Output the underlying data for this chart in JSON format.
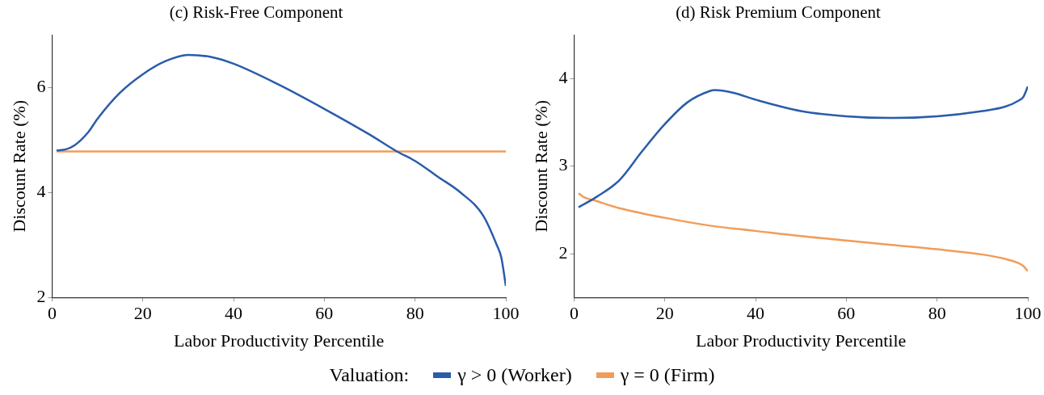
{
  "chart_data": [
    {
      "type": "line",
      "title": "(c) Risk-Free Component",
      "xlabel": "Labor Productivity Percentile",
      "ylabel": "Discount Rate (%)",
      "xlim": [
        0,
        100
      ],
      "xticks": [
        0,
        20,
        40,
        60,
        80,
        100
      ],
      "ylim": [
        2,
        7
      ],
      "yticks": [
        2,
        4,
        6
      ],
      "grid": false,
      "legend": "bottom",
      "legend_title": "Valuation:",
      "marker": "none",
      "series": [
        {
          "name": "γ > 0 (Worker)",
          "color": "#2a5caa",
          "x": [
            1,
            3,
            5,
            8,
            10,
            15,
            20,
            25,
            30,
            35,
            40,
            50,
            60,
            70,
            76,
            80,
            85,
            90,
            95,
            98,
            99,
            100
          ],
          "values": [
            4.8,
            4.82,
            4.9,
            5.15,
            5.4,
            5.9,
            6.25,
            6.5,
            6.62,
            6.58,
            6.45,
            6.05,
            5.59,
            5.1,
            4.78,
            4.6,
            4.3,
            4.0,
            3.56,
            3.0,
            2.76,
            2.22
          ]
        },
        {
          "name": "γ = 0 (Firm)",
          "color": "#f19c59",
          "x": [
            1,
            100
          ],
          "values": [
            4.78,
            4.78
          ]
        }
      ]
    },
    {
      "type": "line",
      "title": "(d) Risk Premium Component",
      "xlabel": "Labor Productivity Percentile",
      "ylabel": "Discount Rate (%)",
      "xlim": [
        0,
        100
      ],
      "xticks": [
        0,
        20,
        40,
        60,
        80,
        100
      ],
      "ylim": [
        1.5,
        4.5
      ],
      "yticks": [
        2,
        3,
        4
      ],
      "grid": false,
      "marker": "none",
      "series": [
        {
          "color": "#2a5caa",
          "x": [
            1,
            5,
            10,
            15,
            20,
            25,
            30,
            31,
            35,
            40,
            50,
            60,
            70,
            80,
            90,
            95,
            98,
            99,
            100
          ],
          "values": [
            2.53,
            2.65,
            2.84,
            3.17,
            3.48,
            3.73,
            3.86,
            3.87,
            3.84,
            3.76,
            3.63,
            3.57,
            3.55,
            3.57,
            3.63,
            3.68,
            3.75,
            3.79,
            3.91
          ]
        },
        {
          "color": "#f19c59",
          "x": [
            1,
            2,
            5,
            10,
            20,
            30,
            40,
            50,
            60,
            70,
            80,
            90,
            95,
            98,
            99,
            100
          ],
          "values": [
            2.69,
            2.65,
            2.6,
            2.52,
            2.41,
            2.32,
            2.26,
            2.2,
            2.15,
            2.1,
            2.05,
            1.99,
            1.94,
            1.89,
            1.86,
            1.8
          ]
        }
      ]
    }
  ]
}
